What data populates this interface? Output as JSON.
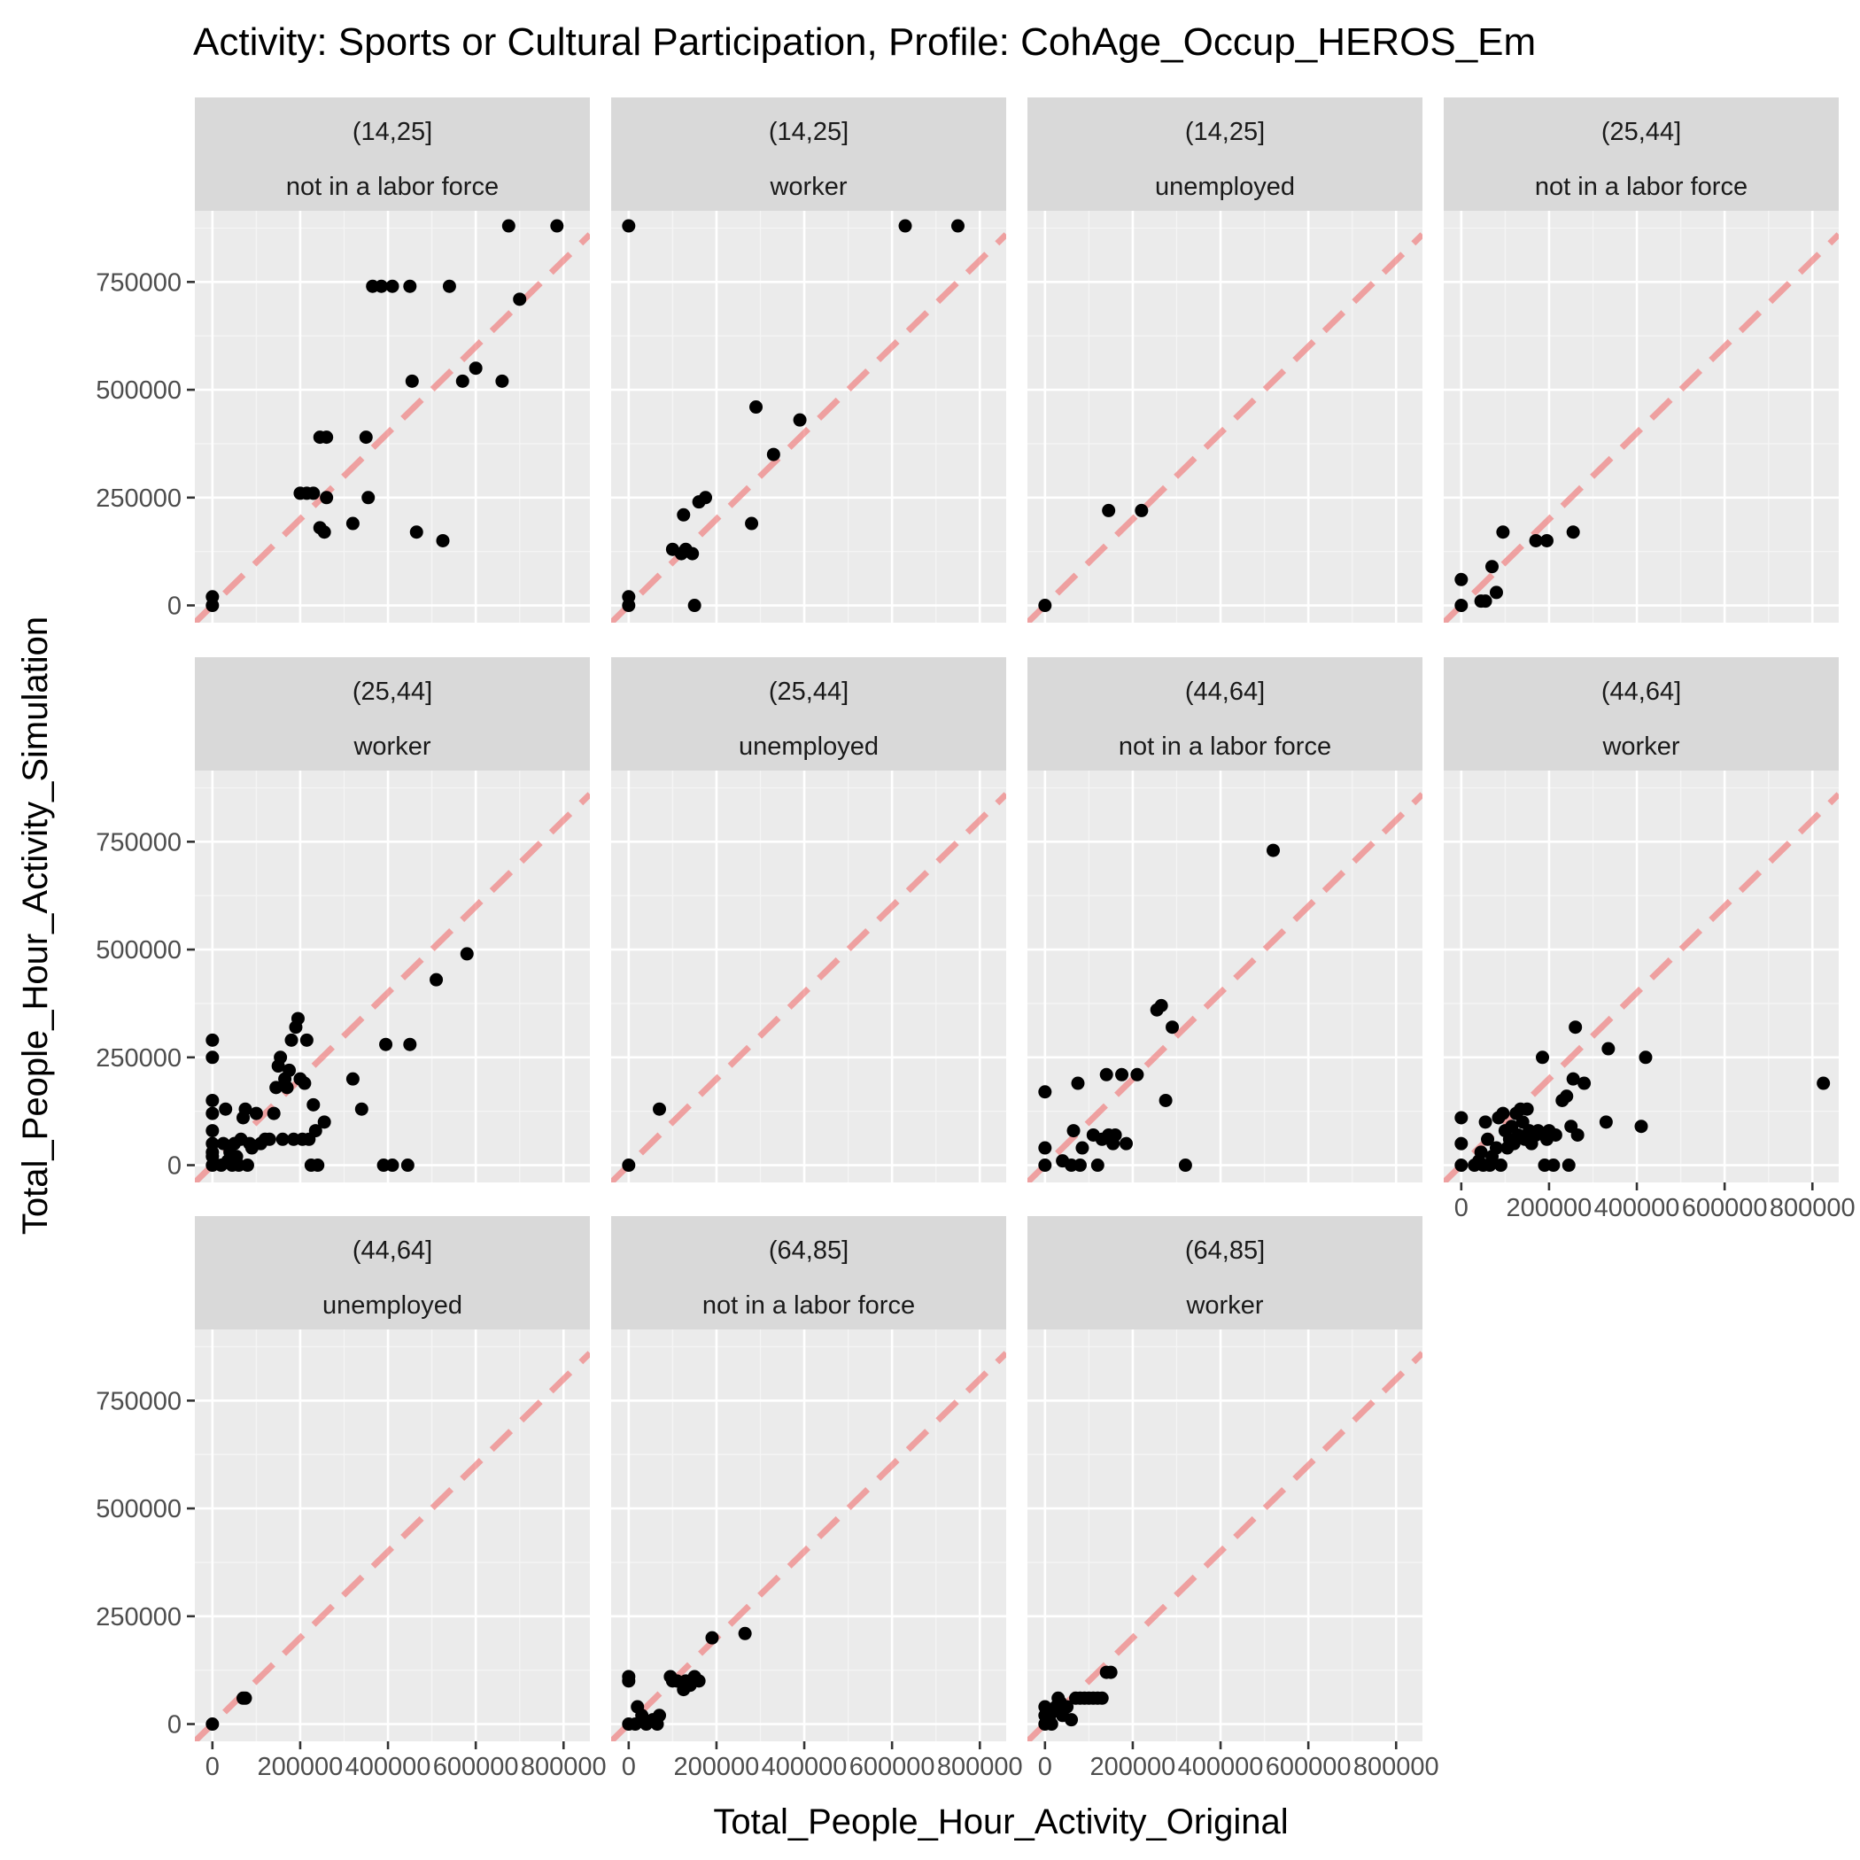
{
  "chart_data": {
    "type": "scatter",
    "title": "Activity: Sports or Cultural Participation, Profile: CohAge_Occup_HEROS_Em",
    "xlabel": "Total_People_Hour_Activity_Original",
    "ylabel": "Total_People_Hour_Activity_Simulation",
    "xlim": [
      -40000,
      860000
    ],
    "ylim": [
      -40000,
      915000
    ],
    "x_ticks": [
      0,
      200000,
      400000,
      600000,
      800000
    ],
    "x_tick_labels": [
      "0",
      "200000",
      "400000",
      "600000",
      "800000"
    ],
    "y_ticks": [
      0,
      250000,
      500000,
      750000
    ],
    "y_tick_labels": [
      "0",
      "250000",
      "500000",
      "750000"
    ],
    "grid": true,
    "reference_line": {
      "slope": 1,
      "intercept": 0,
      "style": "dashed",
      "color": "#f08080"
    },
    "point_color": "#000000",
    "panels": [
      {
        "age": "(14,25]",
        "occupation": "not in a labor force",
        "points": [
          [
            0,
            0
          ],
          [
            0,
            20000
          ],
          [
            200000,
            260000
          ],
          [
            215000,
            260000
          ],
          [
            230000,
            260000
          ],
          [
            245000,
            390000
          ],
          [
            260000,
            390000
          ],
          [
            245000,
            180000
          ],
          [
            255000,
            170000
          ],
          [
            260000,
            250000
          ],
          [
            320000,
            190000
          ],
          [
            350000,
            390000
          ],
          [
            355000,
            250000
          ],
          [
            365000,
            740000
          ],
          [
            385000,
            740000
          ],
          [
            410000,
            740000
          ],
          [
            450000,
            740000
          ],
          [
            455000,
            520000
          ],
          [
            465000,
            170000
          ],
          [
            525000,
            150000
          ],
          [
            540000,
            740000
          ],
          [
            570000,
            520000
          ],
          [
            600000,
            550000
          ],
          [
            660000,
            520000
          ],
          [
            675000,
            880000
          ],
          [
            700000,
            710000
          ],
          [
            785000,
            880000
          ]
        ]
      },
      {
        "age": "(14,25]",
        "occupation": "worker",
        "points": [
          [
            0,
            880000
          ],
          [
            0,
            0
          ],
          [
            0,
            20000
          ],
          [
            100000,
            130000
          ],
          [
            120000,
            120000
          ],
          [
            125000,
            210000
          ],
          [
            130000,
            130000
          ],
          [
            145000,
            120000
          ],
          [
            150000,
            0
          ],
          [
            160000,
            240000
          ],
          [
            175000,
            250000
          ],
          [
            280000,
            190000
          ],
          [
            290000,
            460000
          ],
          [
            330000,
            350000
          ],
          [
            390000,
            430000
          ],
          [
            630000,
            880000
          ],
          [
            750000,
            880000
          ]
        ]
      },
      {
        "age": "(14,25]",
        "occupation": "unemployed",
        "points": [
          [
            0,
            0
          ],
          [
            145000,
            220000
          ],
          [
            220000,
            220000
          ]
        ]
      },
      {
        "age": "(25,44]",
        "occupation": "not in a labor force",
        "points": [
          [
            0,
            0
          ],
          [
            0,
            60000
          ],
          [
            45000,
            10000
          ],
          [
            55000,
            10000
          ],
          [
            70000,
            90000
          ],
          [
            80000,
            30000
          ],
          [
            95000,
            170000
          ],
          [
            170000,
            150000
          ],
          [
            195000,
            150000
          ],
          [
            255000,
            170000
          ]
        ]
      },
      {
        "age": "(25,44]",
        "occupation": "worker",
        "points": [
          [
            0,
            0
          ],
          [
            0,
            20000
          ],
          [
            0,
            30000
          ],
          [
            0,
            50000
          ],
          [
            0,
            80000
          ],
          [
            0,
            120000
          ],
          [
            0,
            150000
          ],
          [
            0,
            250000
          ],
          [
            0,
            290000
          ],
          [
            20000,
            0
          ],
          [
            25000,
            50000
          ],
          [
            30000,
            130000
          ],
          [
            35000,
            10000
          ],
          [
            40000,
            30000
          ],
          [
            45000,
            0
          ],
          [
            50000,
            50000
          ],
          [
            55000,
            20000
          ],
          [
            60000,
            0
          ],
          [
            65000,
            60000
          ],
          [
            70000,
            110000
          ],
          [
            75000,
            130000
          ],
          [
            80000,
            0
          ],
          [
            85000,
            50000
          ],
          [
            90000,
            40000
          ],
          [
            100000,
            120000
          ],
          [
            110000,
            50000
          ],
          [
            120000,
            60000
          ],
          [
            130000,
            60000
          ],
          [
            140000,
            120000
          ],
          [
            145000,
            180000
          ],
          [
            150000,
            230000
          ],
          [
            155000,
            250000
          ],
          [
            160000,
            60000
          ],
          [
            165000,
            200000
          ],
          [
            170000,
            180000
          ],
          [
            175000,
            220000
          ],
          [
            180000,
            290000
          ],
          [
            185000,
            60000
          ],
          [
            190000,
            320000
          ],
          [
            195000,
            340000
          ],
          [
            200000,
            200000
          ],
          [
            205000,
            60000
          ],
          [
            210000,
            190000
          ],
          [
            215000,
            290000
          ],
          [
            220000,
            60000
          ],
          [
            225000,
            0
          ],
          [
            230000,
            140000
          ],
          [
            235000,
            80000
          ],
          [
            240000,
            0
          ],
          [
            255000,
            100000
          ],
          [
            320000,
            200000
          ],
          [
            340000,
            130000
          ],
          [
            390000,
            0
          ],
          [
            395000,
            280000
          ],
          [
            410000,
            0
          ],
          [
            445000,
            0
          ],
          [
            450000,
            280000
          ],
          [
            510000,
            430000
          ],
          [
            580000,
            490000
          ]
        ]
      },
      {
        "age": "(25,44]",
        "occupation": "unemployed",
        "points": [
          [
            0,
            0
          ],
          [
            70000,
            130000
          ]
        ]
      },
      {
        "age": "(44,64]",
        "occupation": "not in a labor force",
        "points": [
          [
            0,
            0
          ],
          [
            0,
            40000
          ],
          [
            0,
            170000
          ],
          [
            40000,
            10000
          ],
          [
            60000,
            0
          ],
          [
            65000,
            80000
          ],
          [
            75000,
            190000
          ],
          [
            80000,
            0
          ],
          [
            85000,
            40000
          ],
          [
            110000,
            70000
          ],
          [
            120000,
            0
          ],
          [
            130000,
            60000
          ],
          [
            140000,
            210000
          ],
          [
            145000,
            70000
          ],
          [
            155000,
            50000
          ],
          [
            160000,
            70000
          ],
          [
            175000,
            210000
          ],
          [
            185000,
            50000
          ],
          [
            210000,
            210000
          ],
          [
            255000,
            360000
          ],
          [
            265000,
            370000
          ],
          [
            275000,
            150000
          ],
          [
            290000,
            320000
          ],
          [
            320000,
            0
          ],
          [
            520000,
            730000
          ]
        ]
      },
      {
        "age": "(44,64]",
        "occupation": "worker",
        "points": [
          [
            0,
            0
          ],
          [
            0,
            50000
          ],
          [
            0,
            110000
          ],
          [
            30000,
            0
          ],
          [
            40000,
            10000
          ],
          [
            45000,
            30000
          ],
          [
            50000,
            0
          ],
          [
            55000,
            100000
          ],
          [
            60000,
            60000
          ],
          [
            65000,
            0
          ],
          [
            70000,
            20000
          ],
          [
            80000,
            40000
          ],
          [
            85000,
            110000
          ],
          [
            90000,
            0
          ],
          [
            95000,
            120000
          ],
          [
            100000,
            80000
          ],
          [
            105000,
            40000
          ],
          [
            110000,
            60000
          ],
          [
            115000,
            90000
          ],
          [
            120000,
            50000
          ],
          [
            125000,
            120000
          ],
          [
            130000,
            70000
          ],
          [
            135000,
            130000
          ],
          [
            140000,
            100000
          ],
          [
            145000,
            60000
          ],
          [
            150000,
            130000
          ],
          [
            155000,
            80000
          ],
          [
            160000,
            50000
          ],
          [
            170000,
            70000
          ],
          [
            175000,
            80000
          ],
          [
            185000,
            250000
          ],
          [
            190000,
            0
          ],
          [
            195000,
            60000
          ],
          [
            200000,
            80000
          ],
          [
            210000,
            0
          ],
          [
            215000,
            70000
          ],
          [
            230000,
            150000
          ],
          [
            240000,
            160000
          ],
          [
            245000,
            0
          ],
          [
            250000,
            90000
          ],
          [
            255000,
            200000
          ],
          [
            260000,
            320000
          ],
          [
            265000,
            70000
          ],
          [
            280000,
            190000
          ],
          [
            330000,
            100000
          ],
          [
            335000,
            270000
          ],
          [
            410000,
            90000
          ],
          [
            420000,
            250000
          ],
          [
            825000,
            190000
          ]
        ]
      },
      {
        "age": "(44,64]",
        "occupation": "unemployed",
        "points": [
          [
            0,
            0
          ],
          [
            70000,
            60000
          ],
          [
            75000,
            60000
          ]
        ]
      },
      {
        "age": "(64,85]",
        "occupation": "not in a labor force",
        "points": [
          [
            0,
            0
          ],
          [
            0,
            100000
          ],
          [
            0,
            110000
          ],
          [
            15000,
            0
          ],
          [
            20000,
            40000
          ],
          [
            30000,
            20000
          ],
          [
            40000,
            0
          ],
          [
            55000,
            10000
          ],
          [
            65000,
            0
          ],
          [
            70000,
            20000
          ],
          [
            95000,
            110000
          ],
          [
            100000,
            100000
          ],
          [
            110000,
            100000
          ],
          [
            125000,
            80000
          ],
          [
            130000,
            100000
          ],
          [
            140000,
            90000
          ],
          [
            150000,
            110000
          ],
          [
            160000,
            100000
          ],
          [
            190000,
            200000
          ],
          [
            265000,
            210000
          ]
        ]
      },
      {
        "age": "(64,85]",
        "occupation": "worker",
        "points": [
          [
            0,
            0
          ],
          [
            0,
            20000
          ],
          [
            0,
            40000
          ],
          [
            10000,
            10000
          ],
          [
            15000,
            0
          ],
          [
            20000,
            30000
          ],
          [
            25000,
            40000
          ],
          [
            30000,
            60000
          ],
          [
            35000,
            50000
          ],
          [
            40000,
            20000
          ],
          [
            50000,
            40000
          ],
          [
            60000,
            10000
          ],
          [
            70000,
            60000
          ],
          [
            80000,
            60000
          ],
          [
            90000,
            60000
          ],
          [
            100000,
            60000
          ],
          [
            110000,
            60000
          ],
          [
            120000,
            60000
          ],
          [
            130000,
            60000
          ],
          [
            140000,
            120000
          ],
          [
            150000,
            120000
          ]
        ]
      }
    ]
  }
}
